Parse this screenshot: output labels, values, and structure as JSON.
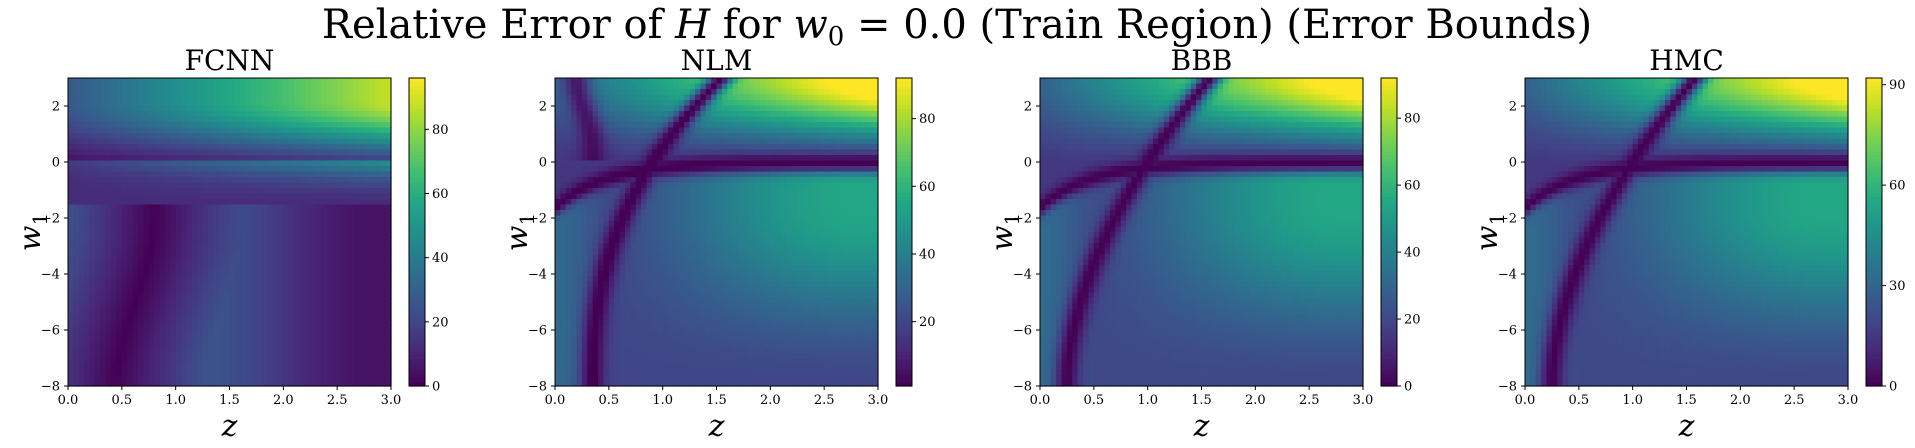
{
  "figure": {
    "title_prefix": "Relative Error of ",
    "title_var": "H",
    "title_mid": " for ",
    "title_w": "w",
    "title_w_sub": "0",
    "title_suffix": " = 0.0 (Train Region) (Error Bounds)"
  },
  "chart_data": [
    {
      "type": "heatmap",
      "title": "FCNN",
      "xlabel": "z",
      "ylabel": "w",
      "ylabel_sub": "1",
      "xlim": [
        0.0,
        3.0
      ],
      "ylim": [
        -8,
        3
      ],
      "xticks": [
        "0.0",
        "0.5",
        "1.0",
        "1.5",
        "2.0",
        "2.5",
        "3.0"
      ],
      "yticks": [
        "2",
        "0",
        "−2",
        "−4",
        "−6",
        "−8"
      ],
      "colorbar": {
        "min": 0,
        "max": 96,
        "ticks": [
          0,
          20,
          40,
          60,
          80
        ],
        "tick_labels": [
          "0",
          "20",
          "40",
          "60",
          "80"
        ]
      },
      "colormap": "viridis",
      "colors": {
        "low": "#440154",
        "mid": "#21918c",
        "high": "#fde725"
      }
    },
    {
      "type": "heatmap",
      "title": "NLM",
      "xlabel": "z",
      "ylabel": "w",
      "ylabel_sub": "1",
      "xlim": [
        0.0,
        3.0
      ],
      "ylim": [
        -8,
        3
      ],
      "xticks": [
        "0.0",
        "0.5",
        "1.0",
        "1.5",
        "2.0",
        "2.5",
        "3.0"
      ],
      "yticks": [
        "2",
        "0",
        "−2",
        "−4",
        "−6",
        "−8"
      ],
      "colorbar": {
        "min": 1,
        "max": 92,
        "ticks": [
          20,
          40,
          60,
          80
        ],
        "tick_labels": [
          "20",
          "40",
          "60",
          "80"
        ]
      },
      "colormap": "viridis"
    },
    {
      "type": "heatmap",
      "title": "BBB",
      "xlabel": "z",
      "ylabel": "w",
      "ylabel_sub": "1",
      "xlim": [
        0.0,
        3.0
      ],
      "ylim": [
        -8,
        3
      ],
      "xticks": [
        "0.0",
        "0.5",
        "1.0",
        "1.5",
        "2.0",
        "2.5",
        "3.0"
      ],
      "yticks": [
        "2",
        "0",
        "−2",
        "−4",
        "−6",
        "−8"
      ],
      "colorbar": {
        "min": 0,
        "max": 92,
        "ticks": [
          0,
          20,
          40,
          60,
          80
        ],
        "tick_labels": [
          "0",
          "20",
          "40",
          "60",
          "80"
        ]
      },
      "colormap": "viridis"
    },
    {
      "type": "heatmap",
      "title": "HMC",
      "xlabel": "z",
      "ylabel": "w",
      "ylabel_sub": "1",
      "xlim": [
        0.0,
        3.0
      ],
      "ylim": [
        -8,
        3
      ],
      "xticks": [
        "0.0",
        "0.5",
        "1.0",
        "1.5",
        "2.0",
        "2.5",
        "3.0"
      ],
      "yticks": [
        "2",
        "0",
        "−2",
        "−4",
        "−6",
        "−8"
      ],
      "colorbar": {
        "min": 0,
        "max": 92,
        "ticks": [
          0,
          30,
          60,
          90
        ],
        "tick_labels": [
          "0",
          "30",
          "60",
          "90"
        ]
      },
      "colormap": "viridis"
    }
  ]
}
